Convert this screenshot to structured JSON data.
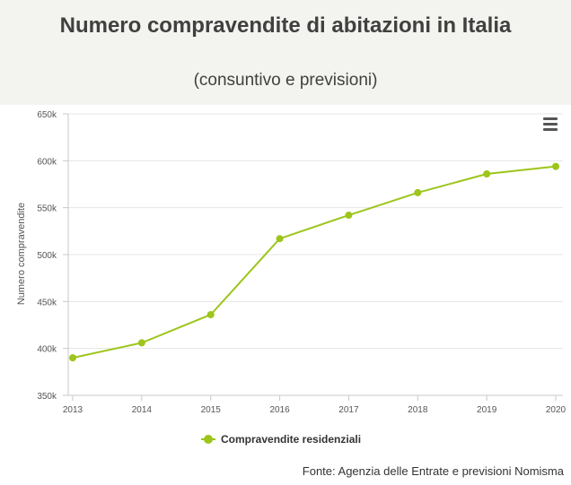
{
  "header": {
    "title": "Numero compravendite di abitazioni in Italia",
    "subtitle": "(consuntivo e previsioni)"
  },
  "menu": {
    "icon": "hamburger-menu-icon"
  },
  "source": "Fonte: Agenzia delle Entrate e previsioni Nomisma",
  "colors": {
    "series": "#9dc51b",
    "header_bg": "#f3f3ef",
    "grid": "#e6e6e6"
  },
  "chart_data": {
    "type": "line",
    "title": "Numero compravendite di abitazioni in Italia",
    "subtitle": "(consuntivo e previsioni)",
    "xlabel": "",
    "ylabel": "Numero compravendite",
    "categories": [
      "2013",
      "2014",
      "2015",
      "2016",
      "2017",
      "2018",
      "2019",
      "2020"
    ],
    "series": [
      {
        "name": "Compravendite residenziali",
        "values": [
          390000,
          406000,
          436000,
          517000,
          542000,
          566000,
          586000,
          594000
        ]
      }
    ],
    "ylim": [
      350000,
      650000
    ],
    "yticks": [
      {
        "value": 350000,
        "label": "350k"
      },
      {
        "value": 400000,
        "label": "400k"
      },
      {
        "value": 450000,
        "label": "450k"
      },
      {
        "value": 500000,
        "label": "500k"
      },
      {
        "value": 550000,
        "label": "550k"
      },
      {
        "value": 600000,
        "label": "600k"
      },
      {
        "value": 650000,
        "label": "650k"
      }
    ],
    "grid": true,
    "legend": "bottom-center"
  }
}
